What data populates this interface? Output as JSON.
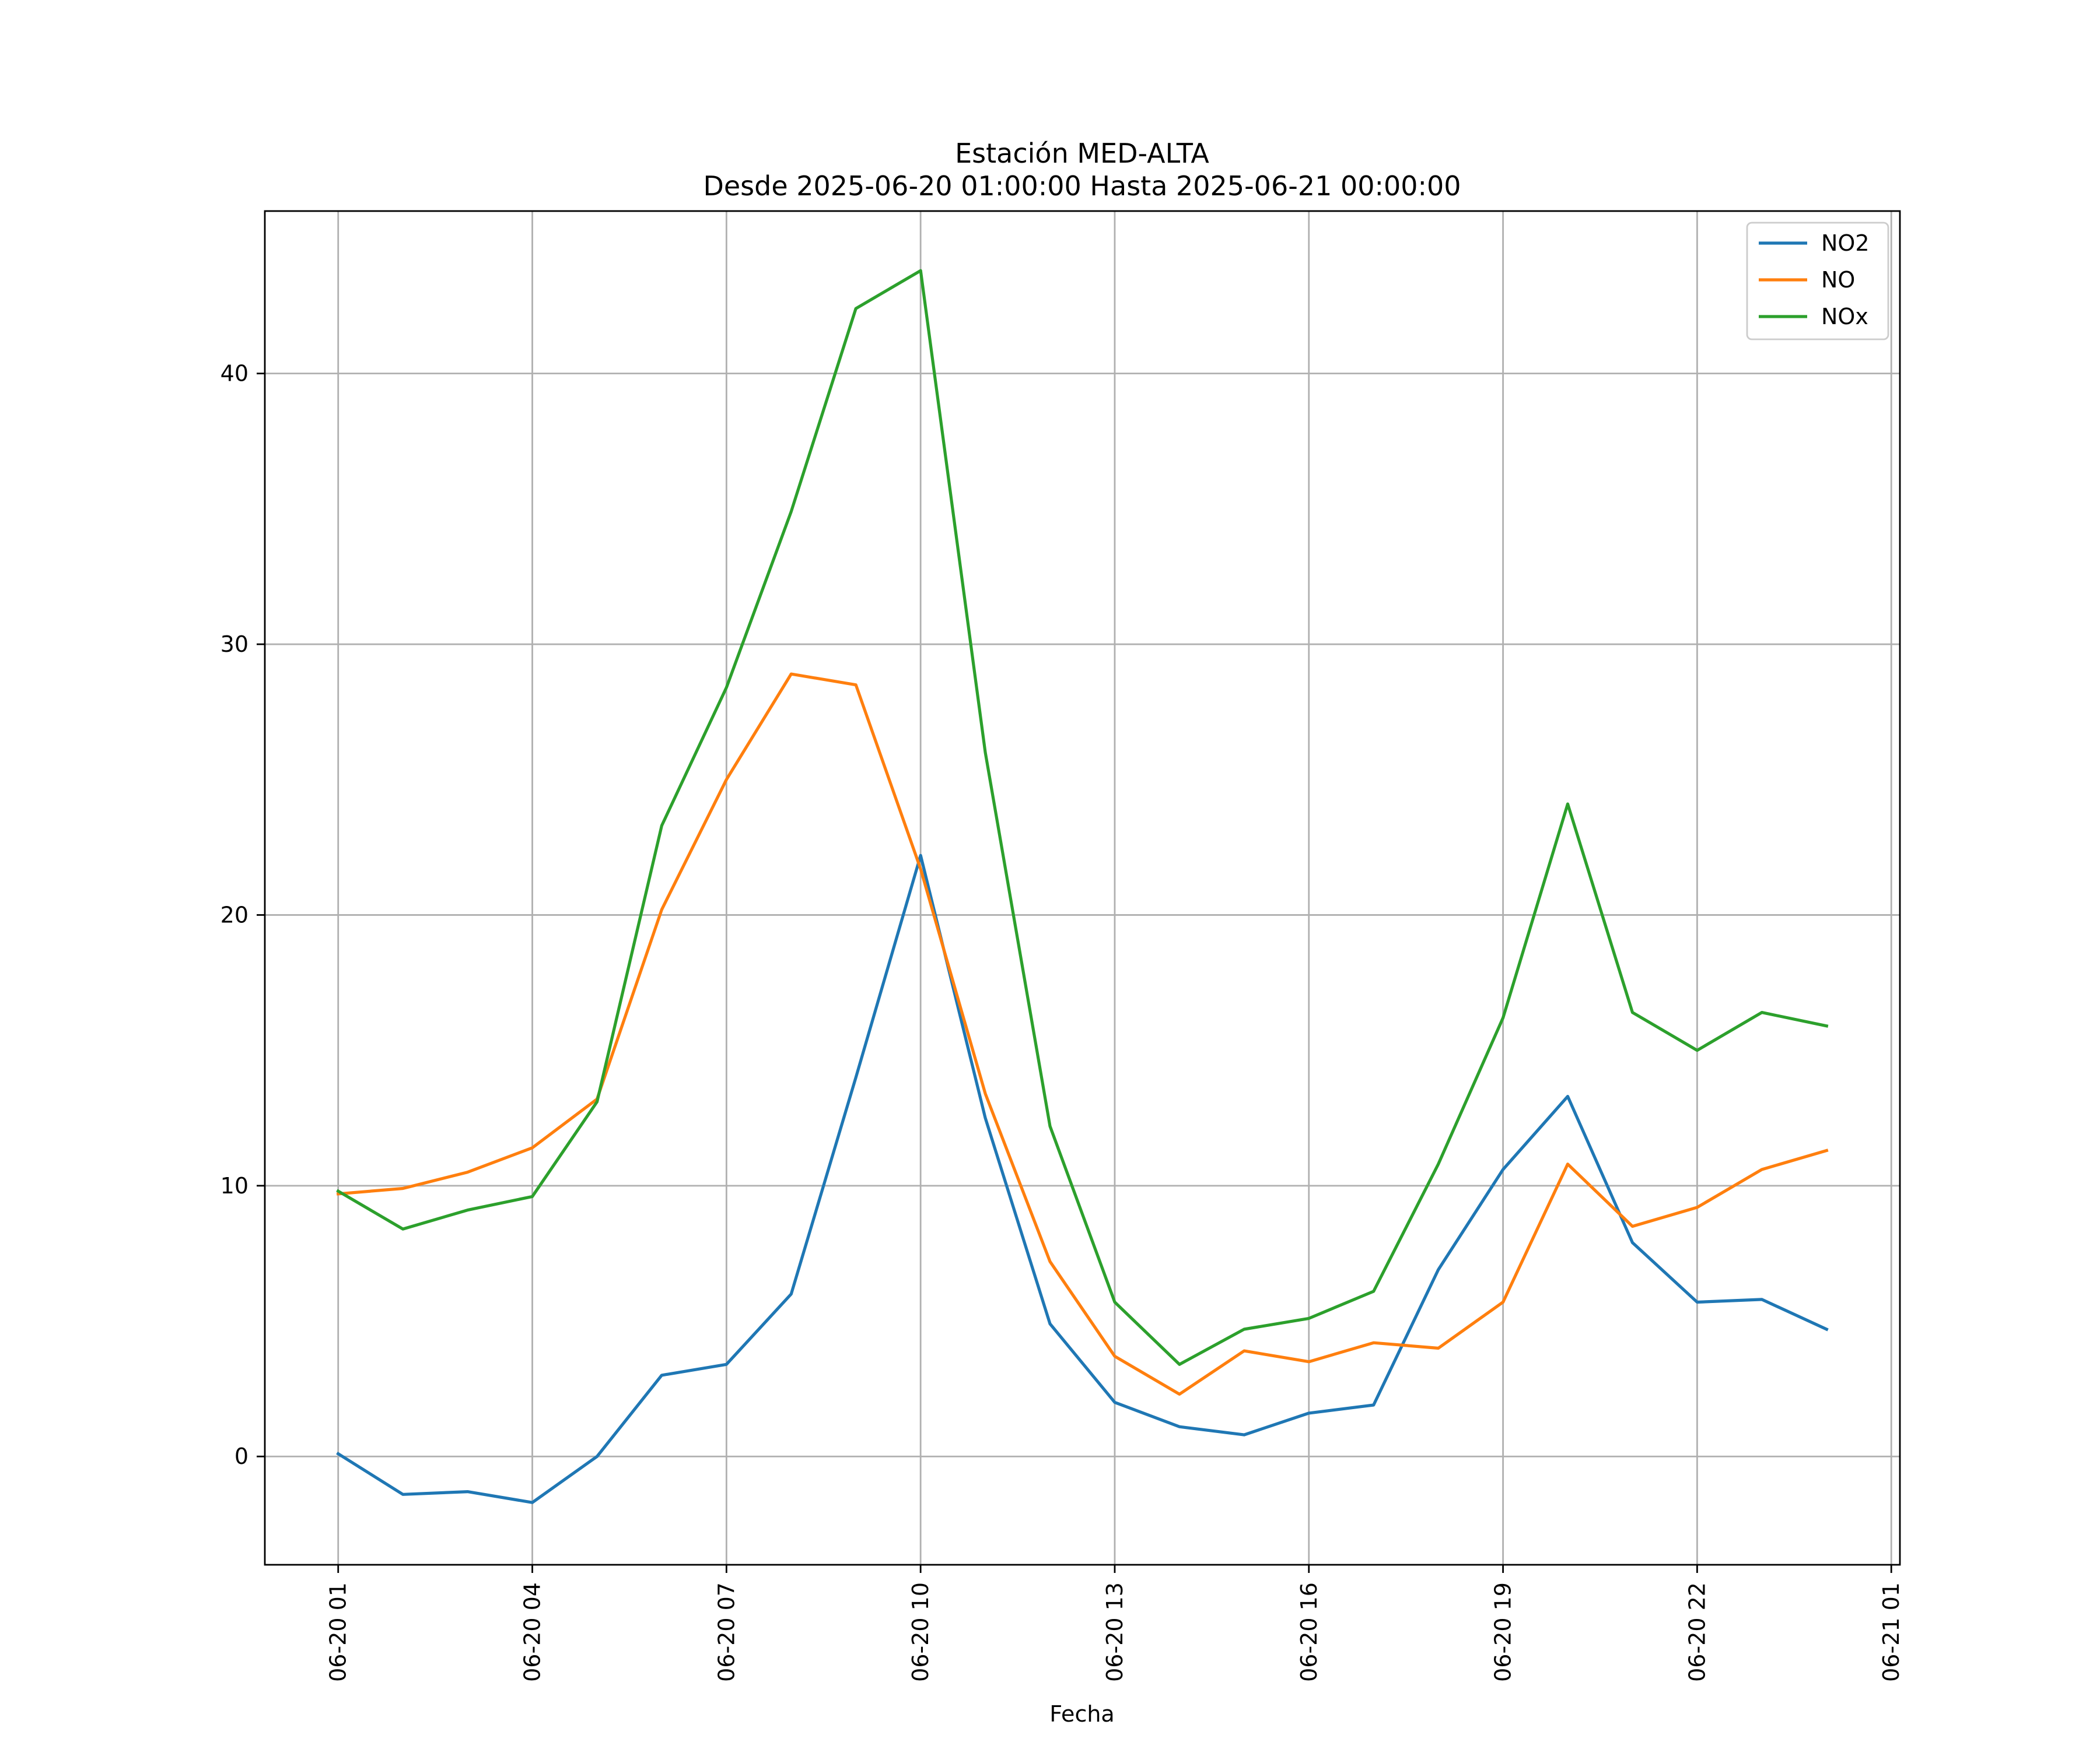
{
  "chart_data": {
    "type": "line",
    "title_line1": "Estación MED-ALTA",
    "title_line2": "Desde 2025-06-20 01:00:00 Hasta 2025-06-21 00:00:00",
    "xlabel": "Fecha",
    "ylabel": "",
    "x": [
      "2025-06-20 01:00",
      "2025-06-20 02:00",
      "2025-06-20 03:00",
      "2025-06-20 04:00",
      "2025-06-20 05:00",
      "2025-06-20 06:00",
      "2025-06-20 07:00",
      "2025-06-20 08:00",
      "2025-06-20 09:00",
      "2025-06-20 10:00",
      "2025-06-20 11:00",
      "2025-06-20 12:00",
      "2025-06-20 13:00",
      "2025-06-20 14:00",
      "2025-06-20 15:00",
      "2025-06-20 16:00",
      "2025-06-20 17:00",
      "2025-06-20 18:00",
      "2025-06-20 19:00",
      "2025-06-20 20:00",
      "2025-06-20 21:00",
      "2025-06-20 22:00",
      "2025-06-20 23:00",
      "2025-06-21 00:00"
    ],
    "xlim": [
      "2025-06-19 23:52",
      "2025-06-21 01:08"
    ],
    "ylim": [
      -4,
      46
    ],
    "x_ticks": [
      {
        "date": "2025-06-20 01:00",
        "label": "06-20 01"
      },
      {
        "date": "2025-06-20 04:00",
        "label": "06-20 04"
      },
      {
        "date": "2025-06-20 07:00",
        "label": "06-20 07"
      },
      {
        "date": "2025-06-20 10:00",
        "label": "06-20 10"
      },
      {
        "date": "2025-06-20 13:00",
        "label": "06-20 13"
      },
      {
        "date": "2025-06-20 16:00",
        "label": "06-20 16"
      },
      {
        "date": "2025-06-20 19:00",
        "label": "06-20 19"
      },
      {
        "date": "2025-06-20 22:00",
        "label": "06-20 22"
      },
      {
        "date": "2025-06-21 01:00",
        "label": "06-21 01"
      }
    ],
    "y_ticks": [
      0,
      10,
      20,
      30,
      40
    ],
    "grid": true,
    "legend_position": "top-right",
    "series": [
      {
        "name": "NO2",
        "color": "#1f77b4",
        "values": [
          0.1,
          -1.4,
          -1.3,
          -1.7,
          0.0,
          3.0,
          3.4,
          6.0,
          14.0,
          22.2,
          12.5,
          4.9,
          2.0,
          1.1,
          0.8,
          1.6,
          1.9,
          6.9,
          10.6,
          13.3,
          7.9,
          5.7,
          5.8,
          4.7
        ]
      },
      {
        "name": "NO",
        "color": "#ff7f0e",
        "values": [
          9.7,
          9.9,
          10.5,
          11.4,
          13.2,
          20.2,
          25.0,
          28.9,
          28.5,
          21.7,
          13.4,
          7.2,
          3.7,
          2.3,
          3.9,
          3.5,
          4.2,
          4.0,
          5.7,
          10.8,
          8.5,
          9.2,
          10.6,
          11.3
        ]
      },
      {
        "name": "NOx",
        "color": "#2ca02c",
        "values": [
          9.8,
          8.4,
          9.1,
          9.6,
          13.1,
          23.3,
          28.4,
          34.9,
          42.4,
          43.8,
          26.0,
          12.2,
          5.7,
          3.4,
          4.7,
          5.1,
          6.1,
          10.8,
          16.2,
          24.1,
          16.4,
          15.0,
          16.4,
          15.9
        ]
      }
    ]
  }
}
